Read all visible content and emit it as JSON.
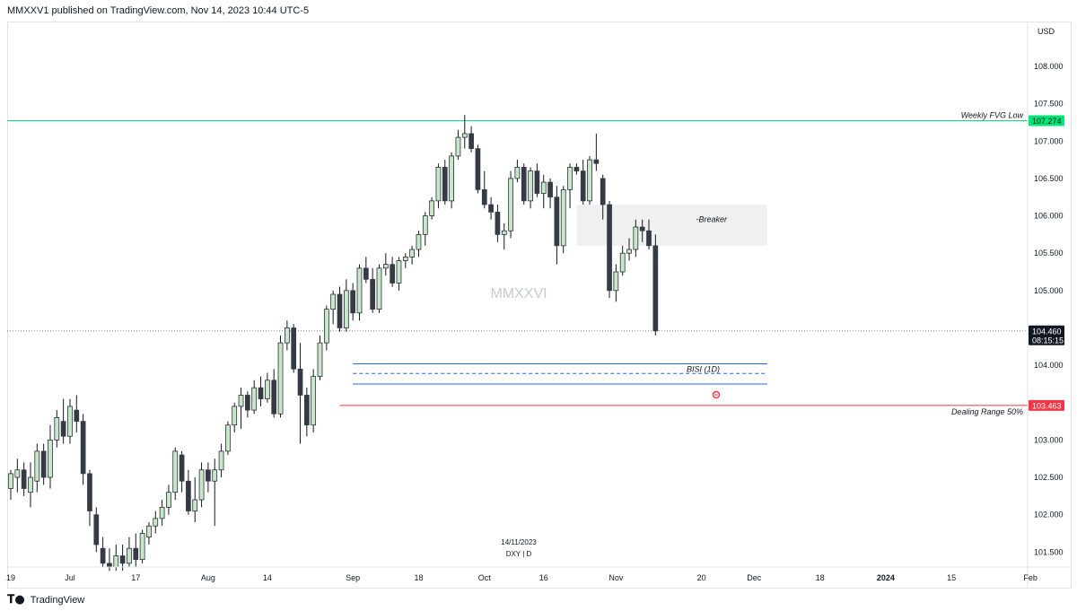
{
  "header": {
    "text": "MMXXV1 published on TradingView.com, Nov 14, 2023 10:44 UTC-5"
  },
  "footer": {
    "logo_text": "TradingView"
  },
  "chart_data": {
    "type": "candlestick",
    "symbol_line": "DXY | D",
    "date_label": "14/11/2023",
    "watermark": "MMXXVI",
    "currency": "USD",
    "y_ticks": [
      "108.000",
      "107.500",
      "107.000",
      "106.500",
      "106.000",
      "105.500",
      "105.000",
      "104.000",
      "103.000",
      "102.500",
      "102.000",
      "101.500"
    ],
    "y_tick_values": [
      108.0,
      107.5,
      107.0,
      106.5,
      106.0,
      105.5,
      105.0,
      104.0,
      103.0,
      102.5,
      102.0,
      101.5
    ],
    "ylim": [
      101.3,
      108.6
    ],
    "x_ticks": [
      {
        "label": "19",
        "i": 0
      },
      {
        "label": "Jul",
        "i": 9
      },
      {
        "label": "17",
        "i": 19
      },
      {
        "label": "Aug",
        "i": 30
      },
      {
        "label": "14",
        "i": 39
      },
      {
        "label": "Sep",
        "i": 52
      },
      {
        "label": "18",
        "i": 62
      },
      {
        "label": "Oct",
        "i": 72
      },
      {
        "label": "16",
        "i": 81
      },
      {
        "label": "Nov",
        "i": 92
      },
      {
        "label": "20",
        "i": 105
      },
      {
        "label": "Dec",
        "i": 113
      },
      {
        "label": "18",
        "i": 123
      },
      {
        "label": "2024",
        "i": 133
      },
      {
        "label": "15",
        "i": 143
      },
      {
        "label": "Feb",
        "i": 155
      }
    ],
    "price_tags": [
      {
        "text": "107.274",
        "value": 107.274,
        "bg": "#00e676",
        "fg": "#131722"
      },
      {
        "text": "103.463",
        "value": 103.463,
        "bg": "#f23645",
        "fg": "#ffffff"
      },
      {
        "text": "104.460",
        "value": 104.46,
        "bg": "#131722",
        "fg": "#ffffff",
        "sub": "08:15:15"
      }
    ],
    "annotations": [
      {
        "text": "Weekly FVG Low",
        "value": 107.274
      },
      {
        "text": "-Breaker",
        "value": 105.95
      },
      {
        "text": "BISI (1D)",
        "value": 103.9
      },
      {
        "text": "Dealing Range 50%",
        "value": 103.463
      }
    ],
    "lines": {
      "fvg_low": {
        "value": 107.274,
        "color": "#00e676"
      },
      "dealing_range": {
        "value": 103.463,
        "color": "#f23645"
      },
      "current": {
        "value": 104.46,
        "color": "#787b86"
      },
      "bisi_top": {
        "value": 104.02,
        "color": "#2962ff"
      },
      "bisi_mid": {
        "value": 103.89,
        "color": "#2962ff"
      },
      "bisi_bottom": {
        "value": 103.75,
        "color": "#2962ff"
      }
    },
    "breaker_zone": {
      "top": 106.15,
      "bottom": 105.6
    },
    "bisi_from_i": 52,
    "zone_to_i": 115,
    "colors": {
      "up": "#c8e6c9",
      "up_border": "#131722",
      "down": "#363a45",
      "wick": "#131722"
    },
    "candles": [
      {
        "o": 102.35,
        "h": 102.6,
        "l": 102.2,
        "c": 102.55
      },
      {
        "o": 102.5,
        "h": 102.75,
        "l": 102.3,
        "c": 102.6
      },
      {
        "o": 102.6,
        "h": 102.7,
        "l": 102.25,
        "c": 102.35
      },
      {
        "o": 102.3,
        "h": 102.7,
        "l": 102.1,
        "c": 102.5
      },
      {
        "o": 102.45,
        "h": 102.95,
        "l": 102.3,
        "c": 102.85
      },
      {
        "o": 102.85,
        "h": 102.95,
        "l": 102.4,
        "c": 102.5
      },
      {
        "o": 102.5,
        "h": 103.2,
        "l": 102.35,
        "c": 103.0
      },
      {
        "o": 103.0,
        "h": 103.4,
        "l": 102.9,
        "c": 103.3
      },
      {
        "o": 103.25,
        "h": 103.55,
        "l": 102.95,
        "c": 103.05
      },
      {
        "o": 103.05,
        "h": 103.55,
        "l": 102.95,
        "c": 103.45
      },
      {
        "o": 103.4,
        "h": 103.6,
        "l": 103.1,
        "c": 103.25
      },
      {
        "o": 103.25,
        "h": 103.35,
        "l": 102.4,
        "c": 102.55
      },
      {
        "o": 102.55,
        "h": 102.6,
        "l": 101.85,
        "c": 102.05
      },
      {
        "o": 102.0,
        "h": 102.1,
        "l": 101.5,
        "c": 101.6
      },
      {
        "o": 101.55,
        "h": 101.7,
        "l": 101.3,
        "c": 101.35
      },
      {
        "o": 101.35,
        "h": 101.55,
        "l": 101.25,
        "c": 101.3
      },
      {
        "o": 101.3,
        "h": 101.6,
        "l": 101.25,
        "c": 101.45
      },
      {
        "o": 101.45,
        "h": 101.6,
        "l": 101.25,
        "c": 101.35
      },
      {
        "o": 101.35,
        "h": 101.7,
        "l": 101.3,
        "c": 101.55
      },
      {
        "o": 101.55,
        "h": 101.75,
        "l": 101.3,
        "c": 101.4
      },
      {
        "o": 101.4,
        "h": 101.8,
        "l": 101.35,
        "c": 101.75
      },
      {
        "o": 101.7,
        "h": 101.9,
        "l": 101.6,
        "c": 101.85
      },
      {
        "o": 101.85,
        "h": 102.05,
        "l": 101.75,
        "c": 101.95
      },
      {
        "o": 101.95,
        "h": 102.2,
        "l": 101.85,
        "c": 102.1
      },
      {
        "o": 102.1,
        "h": 102.4,
        "l": 102.0,
        "c": 102.3
      },
      {
        "o": 102.3,
        "h": 102.9,
        "l": 102.2,
        "c": 102.85
      },
      {
        "o": 102.8,
        "h": 102.85,
        "l": 102.3,
        "c": 102.45
      },
      {
        "o": 102.45,
        "h": 102.6,
        "l": 102.0,
        "c": 102.05
      },
      {
        "o": 102.05,
        "h": 102.5,
        "l": 101.9,
        "c": 102.2
      },
      {
        "o": 102.2,
        "h": 102.7,
        "l": 102.1,
        "c": 102.6
      },
      {
        "o": 102.6,
        "h": 102.7,
        "l": 102.3,
        "c": 102.45
      },
      {
        "o": 102.45,
        "h": 102.75,
        "l": 101.85,
        "c": 102.6
      },
      {
        "o": 102.6,
        "h": 102.95,
        "l": 102.5,
        "c": 102.85
      },
      {
        "o": 102.85,
        "h": 103.25,
        "l": 102.8,
        "c": 103.2
      },
      {
        "o": 103.2,
        "h": 103.5,
        "l": 103.1,
        "c": 103.45
      },
      {
        "o": 103.45,
        "h": 103.7,
        "l": 103.15,
        "c": 103.6
      },
      {
        "o": 103.6,
        "h": 103.65,
        "l": 103.3,
        "c": 103.4
      },
      {
        "o": 103.4,
        "h": 103.8,
        "l": 103.35,
        "c": 103.7
      },
      {
        "o": 103.7,
        "h": 103.85,
        "l": 103.45,
        "c": 103.55
      },
      {
        "o": 103.55,
        "h": 103.9,
        "l": 103.5,
        "c": 103.8
      },
      {
        "o": 103.8,
        "h": 103.95,
        "l": 103.3,
        "c": 103.35
      },
      {
        "o": 103.35,
        "h": 104.4,
        "l": 103.3,
        "c": 104.3
      },
      {
        "o": 104.3,
        "h": 104.6,
        "l": 104.2,
        "c": 104.5
      },
      {
        "o": 104.5,
        "h": 104.55,
        "l": 103.9,
        "c": 103.95
      },
      {
        "o": 103.95,
        "h": 104.3,
        "l": 102.95,
        "c": 103.6
      },
      {
        "o": 103.6,
        "h": 103.7,
        "l": 103.05,
        "c": 103.2
      },
      {
        "o": 103.2,
        "h": 103.95,
        "l": 103.1,
        "c": 103.85
      },
      {
        "o": 103.85,
        "h": 104.4,
        "l": 103.8,
        "c": 104.3
      },
      {
        "o": 104.3,
        "h": 104.8,
        "l": 104.2,
        "c": 104.75
      },
      {
        "o": 104.75,
        "h": 105.0,
        "l": 104.55,
        "c": 104.95
      },
      {
        "o": 104.95,
        "h": 105.05,
        "l": 104.45,
        "c": 104.5
      },
      {
        "o": 104.5,
        "h": 105.15,
        "l": 104.45,
        "c": 105.0
      },
      {
        "o": 105.0,
        "h": 105.1,
        "l": 104.6,
        "c": 104.7
      },
      {
        "o": 104.7,
        "h": 105.35,
        "l": 104.6,
        "c": 105.3
      },
      {
        "o": 105.3,
        "h": 105.45,
        "l": 105.1,
        "c": 105.15
      },
      {
        "o": 105.15,
        "h": 105.3,
        "l": 104.7,
        "c": 104.75
      },
      {
        "o": 104.75,
        "h": 105.35,
        "l": 104.7,
        "c": 105.3
      },
      {
        "o": 105.3,
        "h": 105.5,
        "l": 105.2,
        "c": 105.35
      },
      {
        "o": 105.35,
        "h": 105.45,
        "l": 105.05,
        "c": 105.1
      },
      {
        "o": 105.1,
        "h": 105.45,
        "l": 105.0,
        "c": 105.4
      },
      {
        "o": 105.4,
        "h": 105.5,
        "l": 105.3,
        "c": 105.45
      },
      {
        "o": 105.45,
        "h": 105.6,
        "l": 105.35,
        "c": 105.55
      },
      {
        "o": 105.55,
        "h": 105.8,
        "l": 105.45,
        "c": 105.75
      },
      {
        "o": 105.75,
        "h": 106.05,
        "l": 105.6,
        "c": 106.0
      },
      {
        "o": 106.0,
        "h": 106.25,
        "l": 105.95,
        "c": 106.2
      },
      {
        "o": 106.2,
        "h": 106.7,
        "l": 106.1,
        "c": 106.65
      },
      {
        "o": 106.65,
        "h": 106.75,
        "l": 106.15,
        "c": 106.2
      },
      {
        "o": 106.2,
        "h": 106.85,
        "l": 106.1,
        "c": 106.8
      },
      {
        "o": 106.8,
        "h": 107.15,
        "l": 106.75,
        "c": 107.05
      },
      {
        "o": 107.05,
        "h": 107.35,
        "l": 106.9,
        "c": 107.1
      },
      {
        "o": 107.1,
        "h": 107.2,
        "l": 106.85,
        "c": 106.9
      },
      {
        "o": 106.9,
        "h": 106.95,
        "l": 106.3,
        "c": 106.35
      },
      {
        "o": 106.35,
        "h": 106.6,
        "l": 106.1,
        "c": 106.15
      },
      {
        "o": 106.15,
        "h": 106.25,
        "l": 105.95,
        "c": 106.05
      },
      {
        "o": 106.05,
        "h": 106.15,
        "l": 105.65,
        "c": 105.75
      },
      {
        "o": 105.75,
        "h": 105.9,
        "l": 105.55,
        "c": 105.8
      },
      {
        "o": 105.8,
        "h": 106.6,
        "l": 105.7,
        "c": 106.5
      },
      {
        "o": 106.5,
        "h": 106.75,
        "l": 106.45,
        "c": 106.65
      },
      {
        "o": 106.65,
        "h": 106.7,
        "l": 106.15,
        "c": 106.2
      },
      {
        "o": 106.2,
        "h": 106.65,
        "l": 106.1,
        "c": 106.6
      },
      {
        "o": 106.6,
        "h": 106.7,
        "l": 106.25,
        "c": 106.3
      },
      {
        "o": 106.3,
        "h": 106.55,
        "l": 106.1,
        "c": 106.45
      },
      {
        "o": 106.45,
        "h": 106.5,
        "l": 106.1,
        "c": 106.25
      },
      {
        "o": 106.25,
        "h": 106.4,
        "l": 105.35,
        "c": 105.6
      },
      {
        "o": 105.6,
        "h": 106.4,
        "l": 105.5,
        "c": 106.35
      },
      {
        "o": 106.35,
        "h": 106.7,
        "l": 106.1,
        "c": 106.65
      },
      {
        "o": 106.65,
        "h": 106.7,
        "l": 106.55,
        "c": 106.6
      },
      {
        "o": 106.6,
        "h": 106.75,
        "l": 106.15,
        "c": 106.2
      },
      {
        "o": 106.2,
        "h": 106.8,
        "l": 106.15,
        "c": 106.75
      },
      {
        "o": 106.75,
        "h": 107.1,
        "l": 106.6,
        "c": 106.7
      },
      {
        "o": 106.5,
        "h": 106.55,
        "l": 105.95,
        "c": 106.15
      },
      {
        "o": 106.15,
        "h": 106.2,
        "l": 104.9,
        "c": 105.0
      },
      {
        "o": 105.0,
        "h": 105.35,
        "l": 104.85,
        "c": 105.25
      },
      {
        "o": 105.25,
        "h": 105.6,
        "l": 105.2,
        "c": 105.5
      },
      {
        "o": 105.5,
        "h": 105.7,
        "l": 105.4,
        "c": 105.55
      },
      {
        "o": 105.55,
        "h": 105.95,
        "l": 105.45,
        "c": 105.85
      },
      {
        "o": 105.85,
        "h": 105.95,
        "l": 105.65,
        "c": 105.8
      },
      {
        "o": 105.8,
        "h": 105.95,
        "l": 105.55,
        "c": 105.6
      },
      {
        "o": 105.6,
        "h": 105.75,
        "l": 104.4,
        "c": 104.46
      }
    ]
  }
}
